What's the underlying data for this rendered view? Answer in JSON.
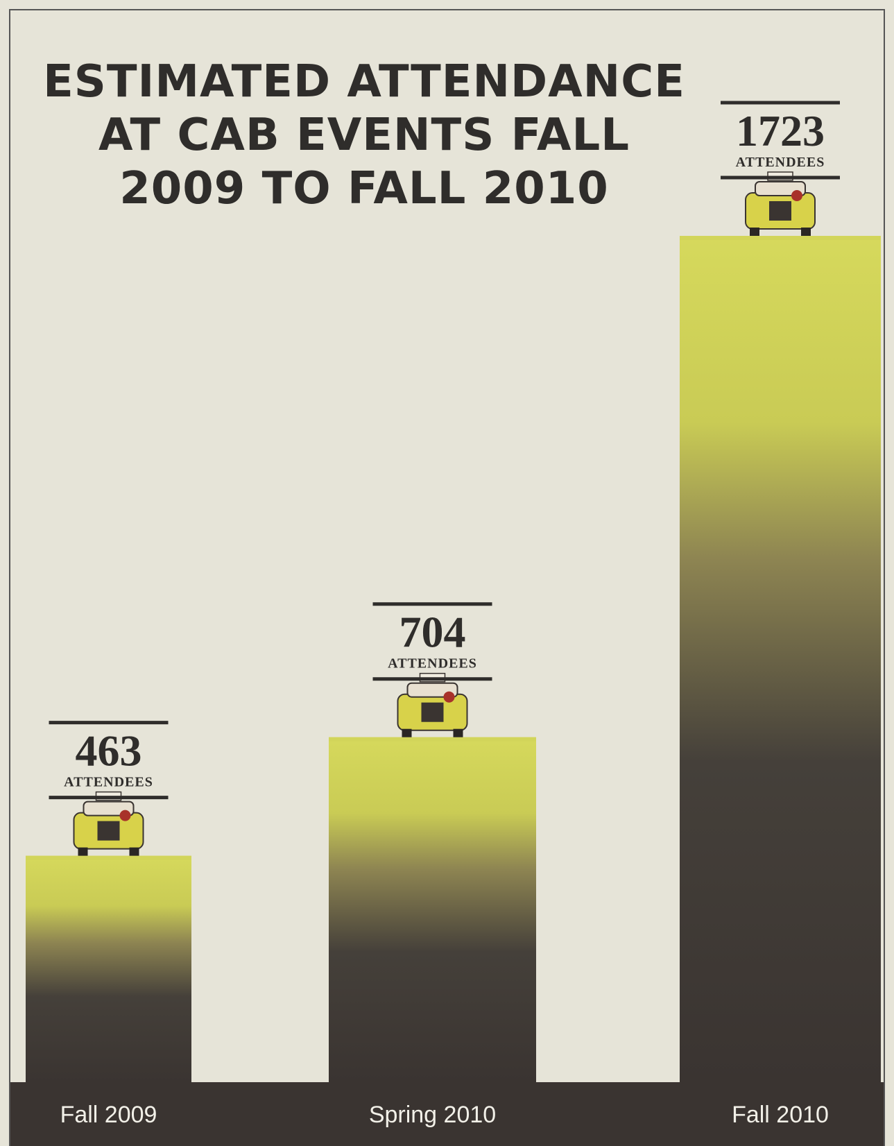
{
  "chart_data": {
    "type": "bar",
    "title": "ESTIMATED ATTENDANCE AT CAB EVENTS FALL 2009 TO FALL 2010",
    "categories": [
      "Fall 2009",
      "Spring 2010",
      "Fall 2010"
    ],
    "values": [
      463,
      704,
      1723
    ],
    "unit_label": "ATTENDEES",
    "color": "#d2d55a"
  }
}
